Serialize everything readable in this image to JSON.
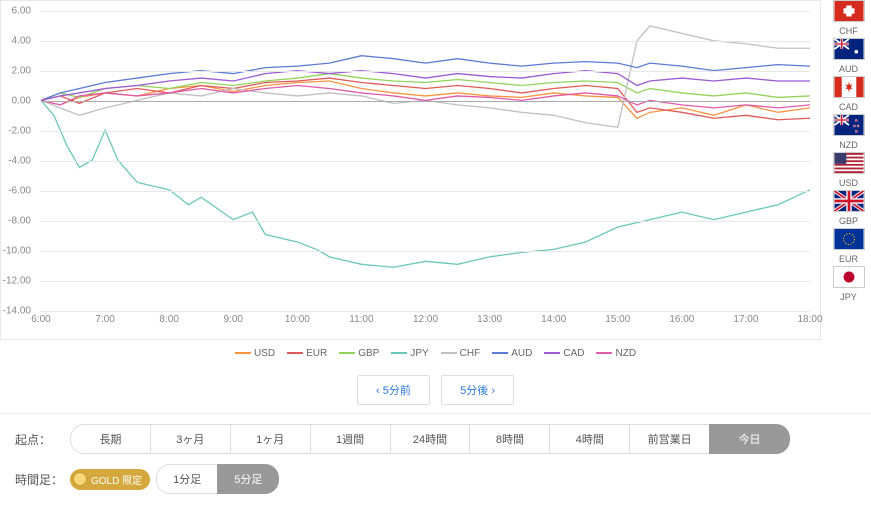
{
  "chart": {
    "type": "line",
    "ylim": [
      -14,
      6
    ],
    "ytick_step": 2,
    "xlabels": [
      "6:00",
      "7:00",
      "8:00",
      "9:00",
      "10:00",
      "11:00",
      "12:00",
      "13:00",
      "14:00",
      "15:00",
      "16:00",
      "17:00",
      "18:00"
    ],
    "xrange": [
      6,
      18
    ],
    "grid_color": "#e8e8e8",
    "zero_line_color": "#aaa",
    "line_width": 1.3,
    "label_fontsize": 10,
    "label_color": "#888",
    "series": [
      {
        "name": "USD",
        "color": "#f59541",
        "data": [
          [
            6,
            0
          ],
          [
            6.3,
            -0.3
          ],
          [
            6.6,
            0.2
          ],
          [
            7,
            0.5
          ],
          [
            7.5,
            0.3
          ],
          [
            8,
            0.8
          ],
          [
            8.5,
            1
          ],
          [
            9,
            0.6
          ],
          [
            9.5,
            1
          ],
          [
            10,
            1.2
          ],
          [
            10.5,
            1.3
          ],
          [
            11,
            0.8
          ],
          [
            11.5,
            0.5
          ],
          [
            12,
            0.3
          ],
          [
            12.5,
            0.5
          ],
          [
            13,
            0.3
          ],
          [
            13.5,
            0.2
          ],
          [
            14,
            0.5
          ],
          [
            14.5,
            0.3
          ],
          [
            15,
            0.2
          ],
          [
            15.3,
            -1.2
          ],
          [
            15.5,
            -0.8
          ],
          [
            16,
            -0.5
          ],
          [
            16.5,
            -1
          ],
          [
            17,
            -0.3
          ],
          [
            17.5,
            -0.8
          ],
          [
            18,
            -0.5
          ]
        ]
      },
      {
        "name": "EUR",
        "color": "#e05a5a",
        "data": [
          [
            6,
            0
          ],
          [
            6.3,
            0.3
          ],
          [
            6.6,
            -0.2
          ],
          [
            7,
            0.5
          ],
          [
            7.5,
            0.8
          ],
          [
            8,
            0.5
          ],
          [
            8.5,
            1
          ],
          [
            9,
            0.8
          ],
          [
            9.5,
            1.2
          ],
          [
            10,
            1.3
          ],
          [
            10.5,
            1.5
          ],
          [
            11,
            1.2
          ],
          [
            11.5,
            1
          ],
          [
            12,
            0.8
          ],
          [
            12.5,
            1
          ],
          [
            13,
            0.8
          ],
          [
            13.5,
            0.5
          ],
          [
            14,
            0.8
          ],
          [
            14.5,
            1
          ],
          [
            15,
            0.8
          ],
          [
            15.3,
            -0.8
          ],
          [
            15.5,
            -0.5
          ],
          [
            16,
            -0.8
          ],
          [
            16.5,
            -1.2
          ],
          [
            17,
            -1
          ],
          [
            17.5,
            -1.3
          ],
          [
            18,
            -1.2
          ]
        ]
      },
      {
        "name": "GBP",
        "color": "#93d35a",
        "data": [
          [
            6,
            0
          ],
          [
            6.3,
            0.5
          ],
          [
            6.6,
            0.2
          ],
          [
            7,
            0.8
          ],
          [
            7.5,
            1
          ],
          [
            8,
            0.8
          ],
          [
            8.5,
            1.2
          ],
          [
            9,
            1
          ],
          [
            9.5,
            1.3
          ],
          [
            10,
            1.5
          ],
          [
            10.5,
            1.8
          ],
          [
            11,
            1.5
          ],
          [
            11.5,
            1.3
          ],
          [
            12,
            1.2
          ],
          [
            12.5,
            1.4
          ],
          [
            13,
            1.2
          ],
          [
            13.5,
            1
          ],
          [
            14,
            1.2
          ],
          [
            14.5,
            1.3
          ],
          [
            15,
            1.2
          ],
          [
            15.3,
            0.5
          ],
          [
            15.5,
            0.8
          ],
          [
            16,
            0.5
          ],
          [
            16.5,
            0.3
          ],
          [
            17,
            0.5
          ],
          [
            17.5,
            0.2
          ],
          [
            18,
            0.3
          ]
        ]
      },
      {
        "name": "JPY",
        "color": "#6bc8b8",
        "data": [
          [
            6,
            0
          ],
          [
            6.2,
            -1
          ],
          [
            6.4,
            -3
          ],
          [
            6.6,
            -4.5
          ],
          [
            6.8,
            -4
          ],
          [
            7,
            -2
          ],
          [
            7.2,
            -4
          ],
          [
            7.5,
            -5.5
          ],
          [
            8,
            -6
          ],
          [
            8.3,
            -7
          ],
          [
            8.5,
            -6.5
          ],
          [
            9,
            -8
          ],
          [
            9.3,
            -7.5
          ],
          [
            9.5,
            -9
          ],
          [
            10,
            -9.5
          ],
          [
            10.3,
            -10
          ],
          [
            10.5,
            -10.5
          ],
          [
            11,
            -11
          ],
          [
            11.5,
            -11.2
          ],
          [
            12,
            -10.8
          ],
          [
            12.5,
            -11
          ],
          [
            13,
            -10.5
          ],
          [
            13.5,
            -10.2
          ],
          [
            14,
            -10
          ],
          [
            14.5,
            -9.5
          ],
          [
            15,
            -8.5
          ],
          [
            15.5,
            -8
          ],
          [
            16,
            -7.5
          ],
          [
            16.5,
            -8
          ],
          [
            17,
            -7.5
          ],
          [
            17.5,
            -7
          ],
          [
            18,
            -6
          ]
        ]
      },
      {
        "name": "CHF",
        "color": "#c0c0c0",
        "data": [
          [
            6,
            0
          ],
          [
            6.3,
            -0.5
          ],
          [
            6.6,
            -1
          ],
          [
            7,
            -0.5
          ],
          [
            7.5,
            0
          ],
          [
            8,
            0.5
          ],
          [
            8.5,
            0.3
          ],
          [
            9,
            0.8
          ],
          [
            9.5,
            0.5
          ],
          [
            10,
            0.3
          ],
          [
            10.5,
            0.5
          ],
          [
            11,
            0.3
          ],
          [
            11.5,
            -0.2
          ],
          [
            12,
            0
          ],
          [
            12.5,
            -0.3
          ],
          [
            13,
            -0.5
          ],
          [
            13.5,
            -0.8
          ],
          [
            14,
            -1
          ],
          [
            14.5,
            -1.5
          ],
          [
            15,
            -1.8
          ],
          [
            15.3,
            4
          ],
          [
            15.5,
            5
          ],
          [
            16,
            4.5
          ],
          [
            16.5,
            4
          ],
          [
            17,
            3.8
          ],
          [
            17.5,
            3.5
          ],
          [
            18,
            3.5
          ]
        ]
      },
      {
        "name": "AUD",
        "color": "#5b7bd4",
        "data": [
          [
            6,
            0
          ],
          [
            6.3,
            0.5
          ],
          [
            6.6,
            0.8
          ],
          [
            7,
            1.2
          ],
          [
            7.5,
            1.5
          ],
          [
            8,
            1.8
          ],
          [
            8.5,
            2
          ],
          [
            9,
            1.8
          ],
          [
            9.5,
            2.2
          ],
          [
            10,
            2.3
          ],
          [
            10.5,
            2.5
          ],
          [
            11,
            3
          ],
          [
            11.5,
            2.8
          ],
          [
            12,
            2.5
          ],
          [
            12.5,
            2.8
          ],
          [
            13,
            2.5
          ],
          [
            13.5,
            2.3
          ],
          [
            14,
            2.5
          ],
          [
            14.5,
            2.6
          ],
          [
            15,
            2.5
          ],
          [
            15.3,
            2.2
          ],
          [
            15.5,
            2.5
          ],
          [
            16,
            2.3
          ],
          [
            16.5,
            2
          ],
          [
            17,
            2.2
          ],
          [
            17.5,
            2.4
          ],
          [
            18,
            2.3
          ]
        ]
      },
      {
        "name": "CAD",
        "color": "#9b5bd4",
        "data": [
          [
            6,
            0
          ],
          [
            6.3,
            0.3
          ],
          [
            6.6,
            0.5
          ],
          [
            7,
            0.8
          ],
          [
            7.5,
            1
          ],
          [
            8,
            1.3
          ],
          [
            8.5,
            1.5
          ],
          [
            9,
            1.3
          ],
          [
            9.5,
            1.8
          ],
          [
            10,
            2
          ],
          [
            10.5,
            1.8
          ],
          [
            11,
            2
          ],
          [
            11.5,
            1.8
          ],
          [
            12,
            1.5
          ],
          [
            12.5,
            1.8
          ],
          [
            13,
            1.6
          ],
          [
            13.5,
            1.5
          ],
          [
            14,
            1.8
          ],
          [
            14.5,
            2
          ],
          [
            15,
            1.8
          ],
          [
            15.3,
            1
          ],
          [
            15.5,
            1.3
          ],
          [
            16,
            1.5
          ],
          [
            16.5,
            1.3
          ],
          [
            17,
            1.5
          ],
          [
            17.5,
            1.3
          ],
          [
            18,
            1.3
          ]
        ]
      },
      {
        "name": "NZD",
        "color": "#e05aa8",
        "data": [
          [
            6,
            0
          ],
          [
            6.3,
            -0.3
          ],
          [
            6.6,
            0.3
          ],
          [
            7,
            0.5
          ],
          [
            7.5,
            0.3
          ],
          [
            8,
            0.5
          ],
          [
            8.5,
            0.8
          ],
          [
            9,
            0.5
          ],
          [
            9.5,
            0.8
          ],
          [
            10,
            1
          ],
          [
            10.5,
            0.8
          ],
          [
            11,
            0.5
          ],
          [
            11.5,
            0.3
          ],
          [
            12,
            0
          ],
          [
            12.5,
            0.3
          ],
          [
            13,
            0.2
          ],
          [
            13.5,
            0
          ],
          [
            14,
            0.3
          ],
          [
            14.5,
            0.5
          ],
          [
            15,
            0.3
          ],
          [
            15.3,
            -0.3
          ],
          [
            15.5,
            0
          ],
          [
            16,
            -0.3
          ],
          [
            16.5,
            -0.5
          ],
          [
            17,
            -0.3
          ],
          [
            17.5,
            -0.5
          ],
          [
            18,
            -0.3
          ]
        ]
      }
    ]
  },
  "flags": [
    {
      "code": "CHF",
      "bg": "#d52b1e",
      "overlay": "chf"
    },
    {
      "code": "AUD",
      "bg": "#00247d",
      "overlay": "aud"
    },
    {
      "code": "CAD",
      "bg": "#ffffff",
      "overlay": "cad"
    },
    {
      "code": "NZD",
      "bg": "#00247d",
      "overlay": "nzd"
    },
    {
      "code": "USD",
      "bg": "#b22234",
      "overlay": "usd"
    },
    {
      "code": "GBP",
      "bg": "#00247d",
      "overlay": "gbp"
    },
    {
      "code": "EUR",
      "bg": "#003399",
      "overlay": "eur"
    },
    {
      "code": "JPY",
      "bg": "#ffffff",
      "overlay": "jpy"
    }
  ],
  "nav": {
    "prev": "5分前",
    "next": "5分後",
    "prev_icon": "‹",
    "next_icon": "›"
  },
  "controls": {
    "origin_label": "起点：",
    "origin_options": [
      "長期",
      "3ヶ月",
      "1ヶ月",
      "1週間",
      "24時間",
      "8時間",
      "4時間",
      "前営業日",
      "今日"
    ],
    "origin_active": "今日",
    "timeframe_label": "時間足：",
    "timeframe_options": [
      "1分足",
      "5分足"
    ],
    "timeframe_active": "5分足",
    "gold_label": "GOLD 限定"
  }
}
